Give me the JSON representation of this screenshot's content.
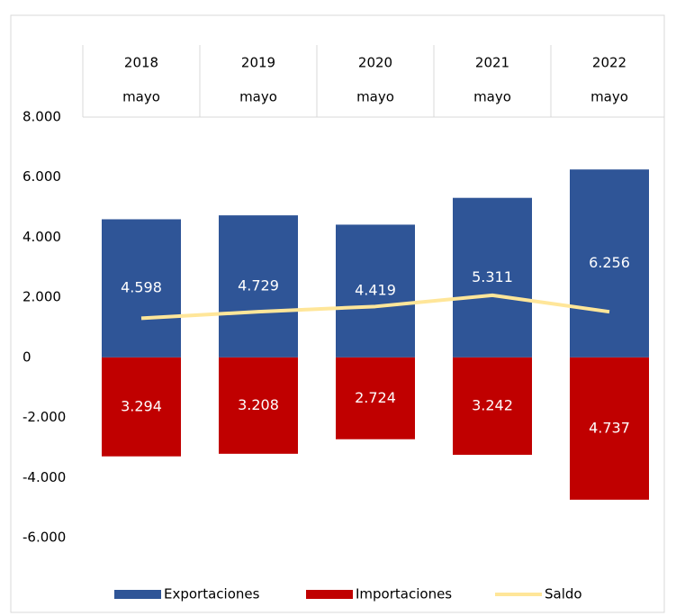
{
  "chart_data": {
    "type": "bar",
    "categories": [
      "2018",
      "2019",
      "2020",
      "2021",
      "2022"
    ],
    "category_sublabels": [
      "mayo",
      "mayo",
      "mayo",
      "mayo",
      "mayo"
    ],
    "series": [
      {
        "name": "Exportaciones",
        "color": "#2f5597",
        "values": [
          4598,
          4729,
          4419,
          5311,
          6256
        ],
        "value_labels": [
          "4.598",
          "4.729",
          "4.419",
          "5.311",
          "6.256"
        ]
      },
      {
        "name": "Importaciones",
        "color": "#c00000",
        "values": [
          -3294,
          -3208,
          -2724,
          -3242,
          -4737
        ],
        "value_labels": [
          "3.294",
          "3.208",
          "2.724",
          "3.242",
          "4.737"
        ]
      },
      {
        "name": "Saldo",
        "type": "line",
        "color": "#ffe699",
        "values": [
          1304,
          1521,
          1695,
          2069,
          1519
        ]
      }
    ],
    "ylim": [
      -6000,
      8000
    ],
    "yticks": [
      {
        "value": -6000,
        "label": "-6.000"
      },
      {
        "value": -4000,
        "label": "-4.000"
      },
      {
        "value": -2000,
        "label": "-2.000"
      },
      0,
      {
        "value": 2000,
        "label": "2.000"
      },
      {
        "value": 4000,
        "label": "4.000"
      },
      {
        "value": 6000,
        "label": "6.000"
      },
      {
        "value": 8000,
        "label": "8.000"
      }
    ],
    "grid": false,
    "legend": "bottom"
  }
}
